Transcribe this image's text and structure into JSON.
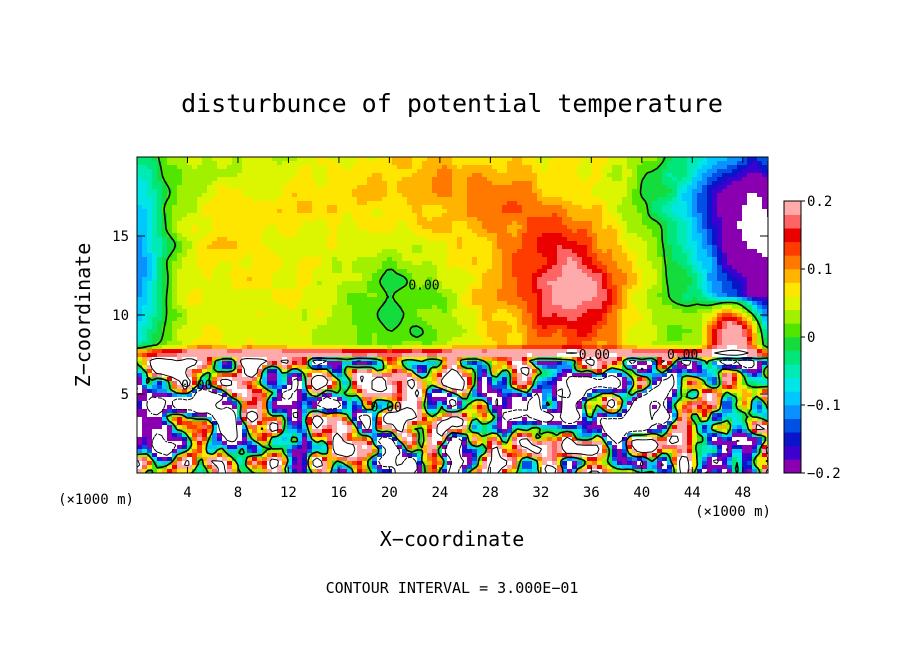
{
  "chart_data": {
    "type": "heatmap",
    "title": "disturbunce of potential temperature",
    "xlabel": "X−coordinate",
    "ylabel": "Z−coordinate",
    "x_unit": "(×1000 m)",
    "y_unit": "(×1000 m)",
    "xlim": [
      0,
      50
    ],
    "ylim": [
      0,
      20
    ],
    "x_ticks": [
      4,
      8,
      12,
      16,
      20,
      24,
      28,
      32,
      36,
      40,
      44,
      48
    ],
    "x_tick_labels": [
      "4",
      "8",
      "12",
      "16",
      "20",
      "24",
      "28",
      "32",
      "36",
      "40",
      "44",
      "48"
    ],
    "y_ticks": [
      5,
      10,
      15
    ],
    "y_tick_labels": [
      "5",
      "10",
      "15"
    ],
    "colorbar": {
      "min": -0.2,
      "max": 0.2,
      "ticks": [
        0.2,
        0.1,
        0,
        -0.1,
        -0.2
      ],
      "tick_labels": [
        "0.2",
        "0.1",
        "0",
        "−0.1",
        "−0.2"
      ],
      "colors": [
        "#8a00b0",
        "#3c00d0",
        "#0a14c8",
        "#0050e6",
        "#0a90ff",
        "#00c8ff",
        "#00e6e6",
        "#00ebb4",
        "#00e678",
        "#14dc3c",
        "#50e600",
        "#a0f000",
        "#dcf500",
        "#ffe600",
        "#ffb400",
        "#ff7800",
        "#ff3c00",
        "#eb0000",
        "#ff6464",
        "#ffaaaa"
      ]
    },
    "contour_labels": [
      "0.00",
      "0.00",
      "0.00",
      "0.00",
      "0.00"
    ],
    "contour_interval_text": "CONTOUR INTERVAL = 3.000E−01",
    "features": {
      "inversion_height": 7.3,
      "upper_field": "smooth, near 0 to +0.1 over most of the domain; cold (−0.1 to −0.2) near lateral boundaries",
      "lower_field": "turbulent mixed layer with strong positive and negative anomalies below about 7 km"
    }
  }
}
